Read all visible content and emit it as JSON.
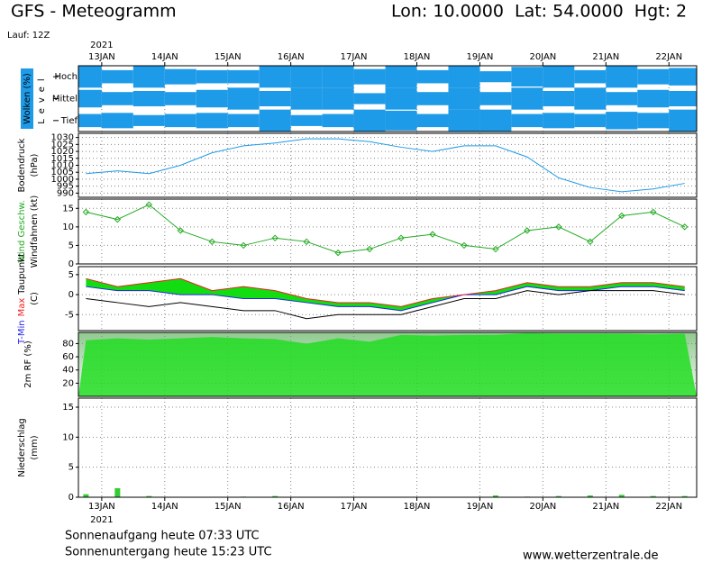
{
  "header": {
    "title": "GFS - Meteogramm",
    "location": "Lon: 10.0000  Lat: 54.0000  Hgt: 2",
    "run": "Lauf: 12Z"
  },
  "footer": {
    "sunrise": "Sonnenaufgang heute 07:33 UTC",
    "sunset": "Sonnenuntergang heute 15:23 UTC",
    "source": "www.wetterzentrale.de"
  },
  "chart_data": [
    {
      "type": "cloud_levels",
      "ylabel": [
        "Wolken (%)"
      ],
      "level_title": "Level",
      "levels": [
        "Hoch",
        "Mittel",
        "Tief"
      ],
      "color": "#1e9be8",
      "xlabels": "top",
      "year": "2021",
      "xlim": [
        -0.37,
        9.44
      ],
      "xticks": [
        {
          "value": 0,
          "label": "13JAN"
        },
        {
          "value": 1,
          "label": "14JAN"
        },
        {
          "value": 2,
          "label": "15JAN"
        },
        {
          "value": 3,
          "label": "16JAN"
        },
        {
          "value": 4,
          "label": "17JAN"
        },
        {
          "value": 5,
          "label": "18JAN"
        },
        {
          "value": 6,
          "label": "19JAN"
        },
        {
          "value": 7,
          "label": "20JAN"
        },
        {
          "value": 8,
          "label": "21JAN"
        },
        {
          "value": 9,
          "label": "22JAN"
        }
      ],
      "x": [
        -0.25,
        0.25,
        0.75,
        1.25,
        1.75,
        2.25,
        2.75,
        3.25,
        3.75,
        4.25,
        4.75,
        5.25,
        5.75,
        6.25,
        6.75,
        7.25,
        7.75,
        8.25,
        8.75,
        9.25
      ],
      "series": [
        {
          "values": [
            100,
            60,
            100,
            70,
            60,
            60,
            100,
            100,
            100,
            70,
            100,
            60,
            100,
            50,
            90,
            100,
            60,
            100,
            70,
            80
          ]
        },
        {
          "values": [
            80,
            60,
            70,
            60,
            80,
            100,
            70,
            100,
            100,
            50,
            100,
            60,
            100,
            60,
            100,
            70,
            100,
            60,
            80,
            70
          ]
        },
        {
          "values": [
            60,
            70,
            50,
            60,
            70,
            60,
            100,
            50,
            60,
            100,
            90,
            60,
            100,
            100,
            60,
            70,
            60,
            80,
            70,
            100
          ]
        }
      ]
    },
    {
      "type": "line",
      "ylabel": [
        "Bodendruck",
        "(hPa)"
      ],
      "xlim": [
        -0.37,
        9.44
      ],
      "xticks": [
        0,
        1,
        2,
        3,
        4,
        5,
        6,
        7,
        8,
        9
      ],
      "ylim": [
        987,
        1033
      ],
      "yticks": [
        990,
        995,
        1000,
        1005,
        1010,
        1015,
        1020,
        1025,
        1030
      ],
      "x": [
        -0.25,
        0.25,
        0.75,
        1.25,
        1.75,
        2.25,
        2.75,
        3.25,
        3.75,
        4.25,
        4.75,
        5.25,
        5.75,
        6.25,
        6.75,
        7.25,
        7.75,
        8.25,
        8.75,
        9.25
      ],
      "series": [
        {
          "color": "#1e9be8",
          "values": [
            1004,
            1006,
            1004,
            1010,
            1019,
            1024,
            1026,
            1029,
            1029,
            1027,
            1023,
            1020,
            1024,
            1024,
            1016,
            1001,
            994,
            991,
            993,
            997
          ]
        }
      ]
    },
    {
      "type": "line",
      "ylabel": [
        "Windfahnen (kt)"
      ],
      "xlim": [
        -0.37,
        9.44
      ],
      "xticks": [
        0,
        1,
        2,
        3,
        4,
        5,
        6,
        7,
        8,
        9
      ],
      "ylim": [
        0,
        17.5
      ],
      "yticks": [
        0,
        5,
        10,
        15
      ],
      "markers": "diamond",
      "x": [
        -0.25,
        0.25,
        0.75,
        1.25,
        1.75,
        2.25,
        2.75,
        3.25,
        3.75,
        4.25,
        4.75,
        5.25,
        5.75,
        6.25,
        6.75,
        7.25,
        7.75,
        8.25,
        8.75,
        9.25
      ],
      "series": [
        {
          "name": "Wind Geschw.",
          "color": "#22aa22",
          "values": [
            14,
            12,
            16,
            9,
            6,
            5,
            7,
            6,
            3,
            4,
            7,
            8,
            5,
            4,
            9,
            10,
            6,
            13,
            14,
            10
          ]
        }
      ]
    },
    {
      "type": "line",
      "ylabel": [
        "(C)"
      ],
      "fill_color": "#11dd11",
      "xlim": [
        -0.37,
        9.44
      ],
      "xticks": [
        0,
        1,
        2,
        3,
        4,
        5,
        6,
        7,
        8,
        9
      ],
      "ylim": [
        -9,
        7
      ],
      "yticks": [
        -5,
        0,
        5
      ],
      "x": [
        -0.25,
        0.25,
        0.75,
        1.25,
        1.75,
        2.25,
        2.75,
        3.25,
        3.75,
        4.25,
        4.75,
        5.25,
        5.75,
        6.25,
        6.75,
        7.25,
        7.75,
        8.25,
        8.75,
        9.25
      ],
      "series": [
        {
          "name": "T-Min",
          "color": "#2222ee",
          "values": [
            2,
            1,
            1,
            0,
            0,
            -1,
            -1,
            -2,
            -3,
            -3,
            -4,
            -2,
            0,
            0,
            2,
            1,
            1,
            2,
            2,
            1
          ]
        },
        {
          "name": "Max",
          "color": "#ee2222",
          "values": [
            4,
            2,
            3,
            4,
            1,
            2,
            1,
            -1,
            -2,
            -2,
            -3,
            -1,
            0,
            1,
            3,
            2,
            2,
            3,
            3,
            2
          ]
        },
        {
          "name": "Taupunkt",
          "color": "#000000",
          "values": [
            -1,
            -2,
            -3,
            -2,
            -3,
            -4,
            -4,
            -6,
            -5,
            -5,
            -5,
            -3,
            -1,
            -1,
            1,
            0,
            1,
            1,
            1,
            0
          ]
        }
      ]
    },
    {
      "type": "area",
      "ylabel": [
        "2m RF (%)"
      ],
      "color": "#22dd22",
      "xlim": [
        -0.37,
        9.44
      ],
      "xticks": [
        0,
        1,
        2,
        3,
        4,
        5,
        6,
        7,
        8,
        9
      ],
      "ylim": [
        0,
        97
      ],
      "yticks": [
        20,
        40,
        60,
        80
      ],
      "x": [
        -0.25,
        0.25,
        0.75,
        1.25,
        1.75,
        2.25,
        2.75,
        3.25,
        3.75,
        4.25,
        4.75,
        5.25,
        5.75,
        6.25,
        6.75,
        7.25,
        7.75,
        8.25,
        8.75,
        9.25
      ],
      "values": [
        85,
        88,
        86,
        88,
        90,
        88,
        87,
        80,
        88,
        83,
        93,
        92,
        93,
        93,
        96,
        95,
        95,
        95,
        94,
        95
      ]
    },
    {
      "type": "bar",
      "ylabel": [
        "Niederschlag",
        "(mm)"
      ],
      "color": "#33cc33",
      "xlabels": "bottom",
      "year": "2021",
      "xlim": [
        -0.37,
        9.44
      ],
      "xticks": [
        {
          "value": 0,
          "label": "13JAN"
        },
        {
          "value": 1,
          "label": "14JAN"
        },
        {
          "value": 2,
          "label": "15JAN"
        },
        {
          "value": 3,
          "label": "16JAN"
        },
        {
          "value": 4,
          "label": "17JAN"
        },
        {
          "value": 5,
          "label": "18JAN"
        },
        {
          "value": 6,
          "label": "19JAN"
        },
        {
          "value": 7,
          "label": "20JAN"
        },
        {
          "value": 8,
          "label": "21JAN"
        },
        {
          "value": 9,
          "label": "22JAN"
        }
      ],
      "ylim": [
        0,
        16.5
      ],
      "yticks": [
        0,
        5,
        10,
        15
      ],
      "x": [
        -0.25,
        0.25,
        0.75,
        1.25,
        1.75,
        2.25,
        2.75,
        3.25,
        3.75,
        4.25,
        4.75,
        5.25,
        5.75,
        6.25,
        6.75,
        7.25,
        7.75,
        8.25,
        8.75,
        9.25
      ],
      "values": [
        0.5,
        1.5,
        0.2,
        0,
        0,
        0.1,
        0.2,
        0,
        0,
        0,
        0,
        0,
        0,
        0.3,
        0.1,
        0.2,
        0.3,
        0.4,
        0.2,
        0.2
      ]
    }
  ]
}
